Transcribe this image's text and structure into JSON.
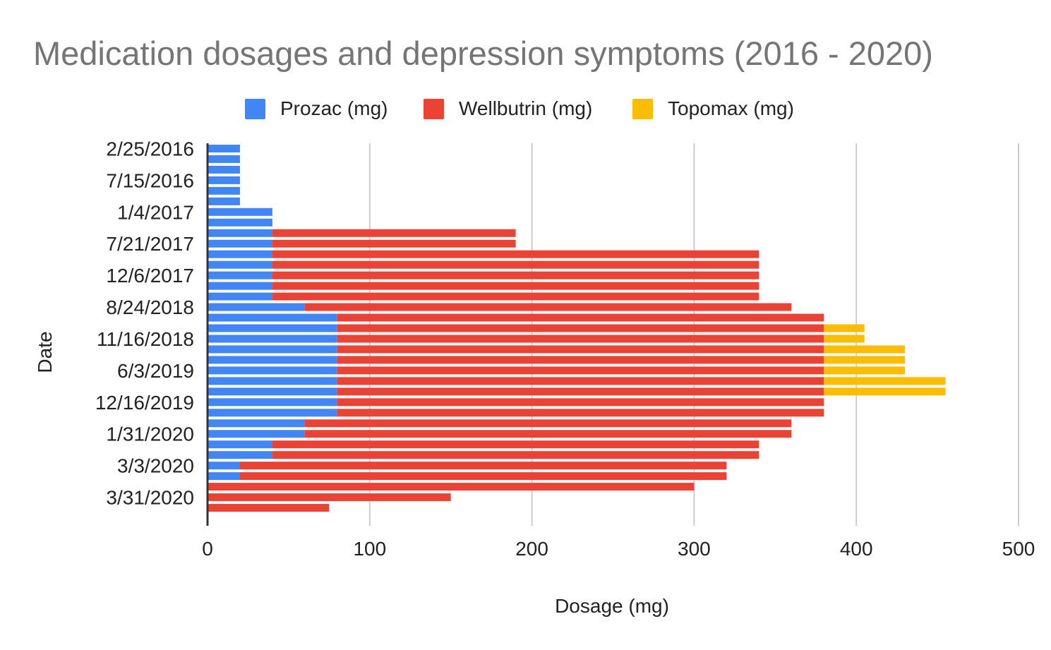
{
  "chart_data": {
    "type": "bar",
    "orientation": "horizontal",
    "stacked": true,
    "title": "Medication dosages and depression symptoms (2016 - 2020)",
    "xlabel": "Dosage (mg)",
    "ylabel": "Date",
    "xlim": [
      0,
      500
    ],
    "xticks": [
      "0",
      "100",
      "200",
      "300",
      "400",
      "500"
    ],
    "grid": true,
    "legend": "top",
    "categories": [
      "2/25/2016",
      "",
      "",
      "7/15/2016",
      "",
      "",
      "1/4/2017",
      "",
      "",
      "7/21/2017",
      "",
      "",
      "12/6/2017",
      "",
      "",
      "8/24/2018",
      "",
      "",
      "11/16/2018",
      "",
      "",
      "6/3/2019",
      "",
      "",
      "12/16/2019",
      "",
      "",
      "1/31/2020",
      "",
      "",
      "3/3/2020",
      "",
      "",
      "3/31/2020",
      "",
      ""
    ],
    "series": [
      {
        "name": "Prozac (mg)",
        "color": "#4285f4",
        "values": [
          20,
          20,
          20,
          20,
          20,
          20,
          40,
          40,
          40,
          40,
          40,
          40,
          40,
          40,
          40,
          60,
          80,
          80,
          80,
          80,
          80,
          80,
          80,
          80,
          80,
          80,
          60,
          60,
          40,
          40,
          20,
          20,
          0,
          0,
          0,
          0
        ]
      },
      {
        "name": "Wellbutrin (mg)",
        "color": "#ea4335",
        "values": [
          0,
          0,
          0,
          0,
          0,
          0,
          0,
          0,
          150,
          150,
          300,
          300,
          300,
          300,
          300,
          300,
          300,
          300,
          300,
          300,
          300,
          300,
          300,
          300,
          300,
          300,
          300,
          300,
          300,
          300,
          300,
          300,
          300,
          150,
          75,
          0
        ]
      },
      {
        "name": "Topomax (mg)",
        "color": "#fbbc04",
        "values": [
          0,
          0,
          0,
          0,
          0,
          0,
          0,
          0,
          0,
          0,
          0,
          0,
          0,
          0,
          0,
          0,
          0,
          25,
          25,
          50,
          50,
          50,
          75,
          75,
          0,
          0,
          0,
          0,
          0,
          0,
          0,
          0,
          0,
          0,
          0,
          0
        ]
      }
    ]
  }
}
